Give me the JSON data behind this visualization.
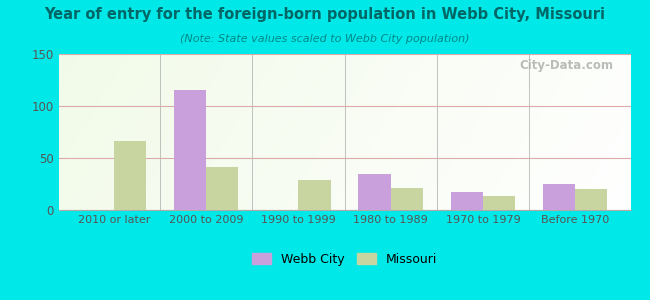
{
  "title": "Year of entry for the foreign-born population in Webb City, Missouri",
  "subtitle": "(Note: State values scaled to Webb City population)",
  "categories": [
    "2010 or later",
    "2000 to 2009",
    "1990 to 1999",
    "1980 to 1989",
    "1970 to 1979",
    "Before 1970"
  ],
  "webb_city": [
    0,
    115,
    0,
    35,
    17,
    25
  ],
  "missouri": [
    66,
    41,
    29,
    21,
    13,
    20
  ],
  "webb_city_color": "#c9a0dc",
  "missouri_color": "#c8d5a0",
  "background_outer": "#00e8e8",
  "title_color": "#006666",
  "subtitle_color": "#008888",
  "tick_color": "#555555",
  "ylim": [
    0,
    150
  ],
  "yticks": [
    0,
    50,
    100,
    150
  ],
  "bar_width": 0.35,
  "legend_labels": [
    "Webb City",
    "Missouri"
  ],
  "watermark": "City-Data.com"
}
